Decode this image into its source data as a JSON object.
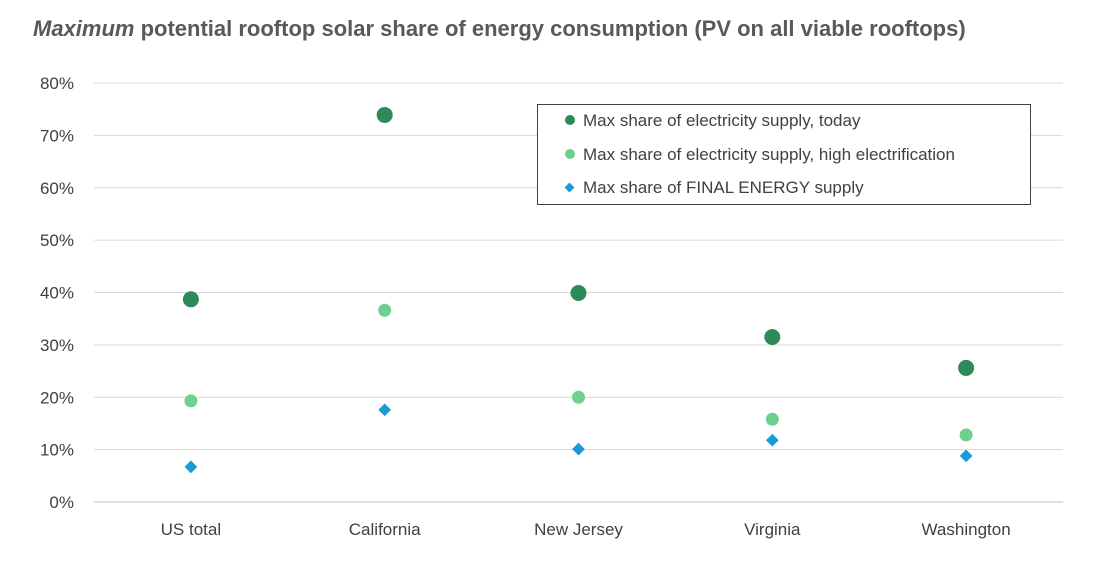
{
  "chart_data": {
    "type": "scatter",
    "title_emphasis": "Maximum",
    "title_rest": " potential rooftop solar share of energy consumption (PV on all viable rooftops)",
    "categories": [
      "US total",
      "California",
      "New Jersey",
      "Virginia",
      "Washington"
    ],
    "ylim": [
      0,
      80
    ],
    "yticks": [
      0,
      10,
      20,
      30,
      40,
      50,
      60,
      70,
      80
    ],
    "ytick_labels": [
      "0%",
      "10%",
      "20%",
      "30%",
      "40%",
      "50%",
      "60%",
      "70%",
      "80%"
    ],
    "grid": true,
    "legend_position": "top-right",
    "series": [
      {
        "name": "Max share of electricity supply, today",
        "color": "#2e8b57",
        "marker": "circle-large",
        "values": [
          38.7,
          73.9,
          39.9,
          31.5,
          25.6
        ]
      },
      {
        "name": "Max share of electricity supply, high electrification",
        "color": "#6fcf8f",
        "marker": "circle",
        "values": [
          19.3,
          36.6,
          20.0,
          15.8,
          12.8
        ]
      },
      {
        "name": "Max share of FINAL ENERGY supply",
        "color": "#1a9ad6",
        "marker": "diamond",
        "values": [
          6.7,
          17.6,
          10.1,
          11.8,
          8.8
        ]
      }
    ]
  }
}
